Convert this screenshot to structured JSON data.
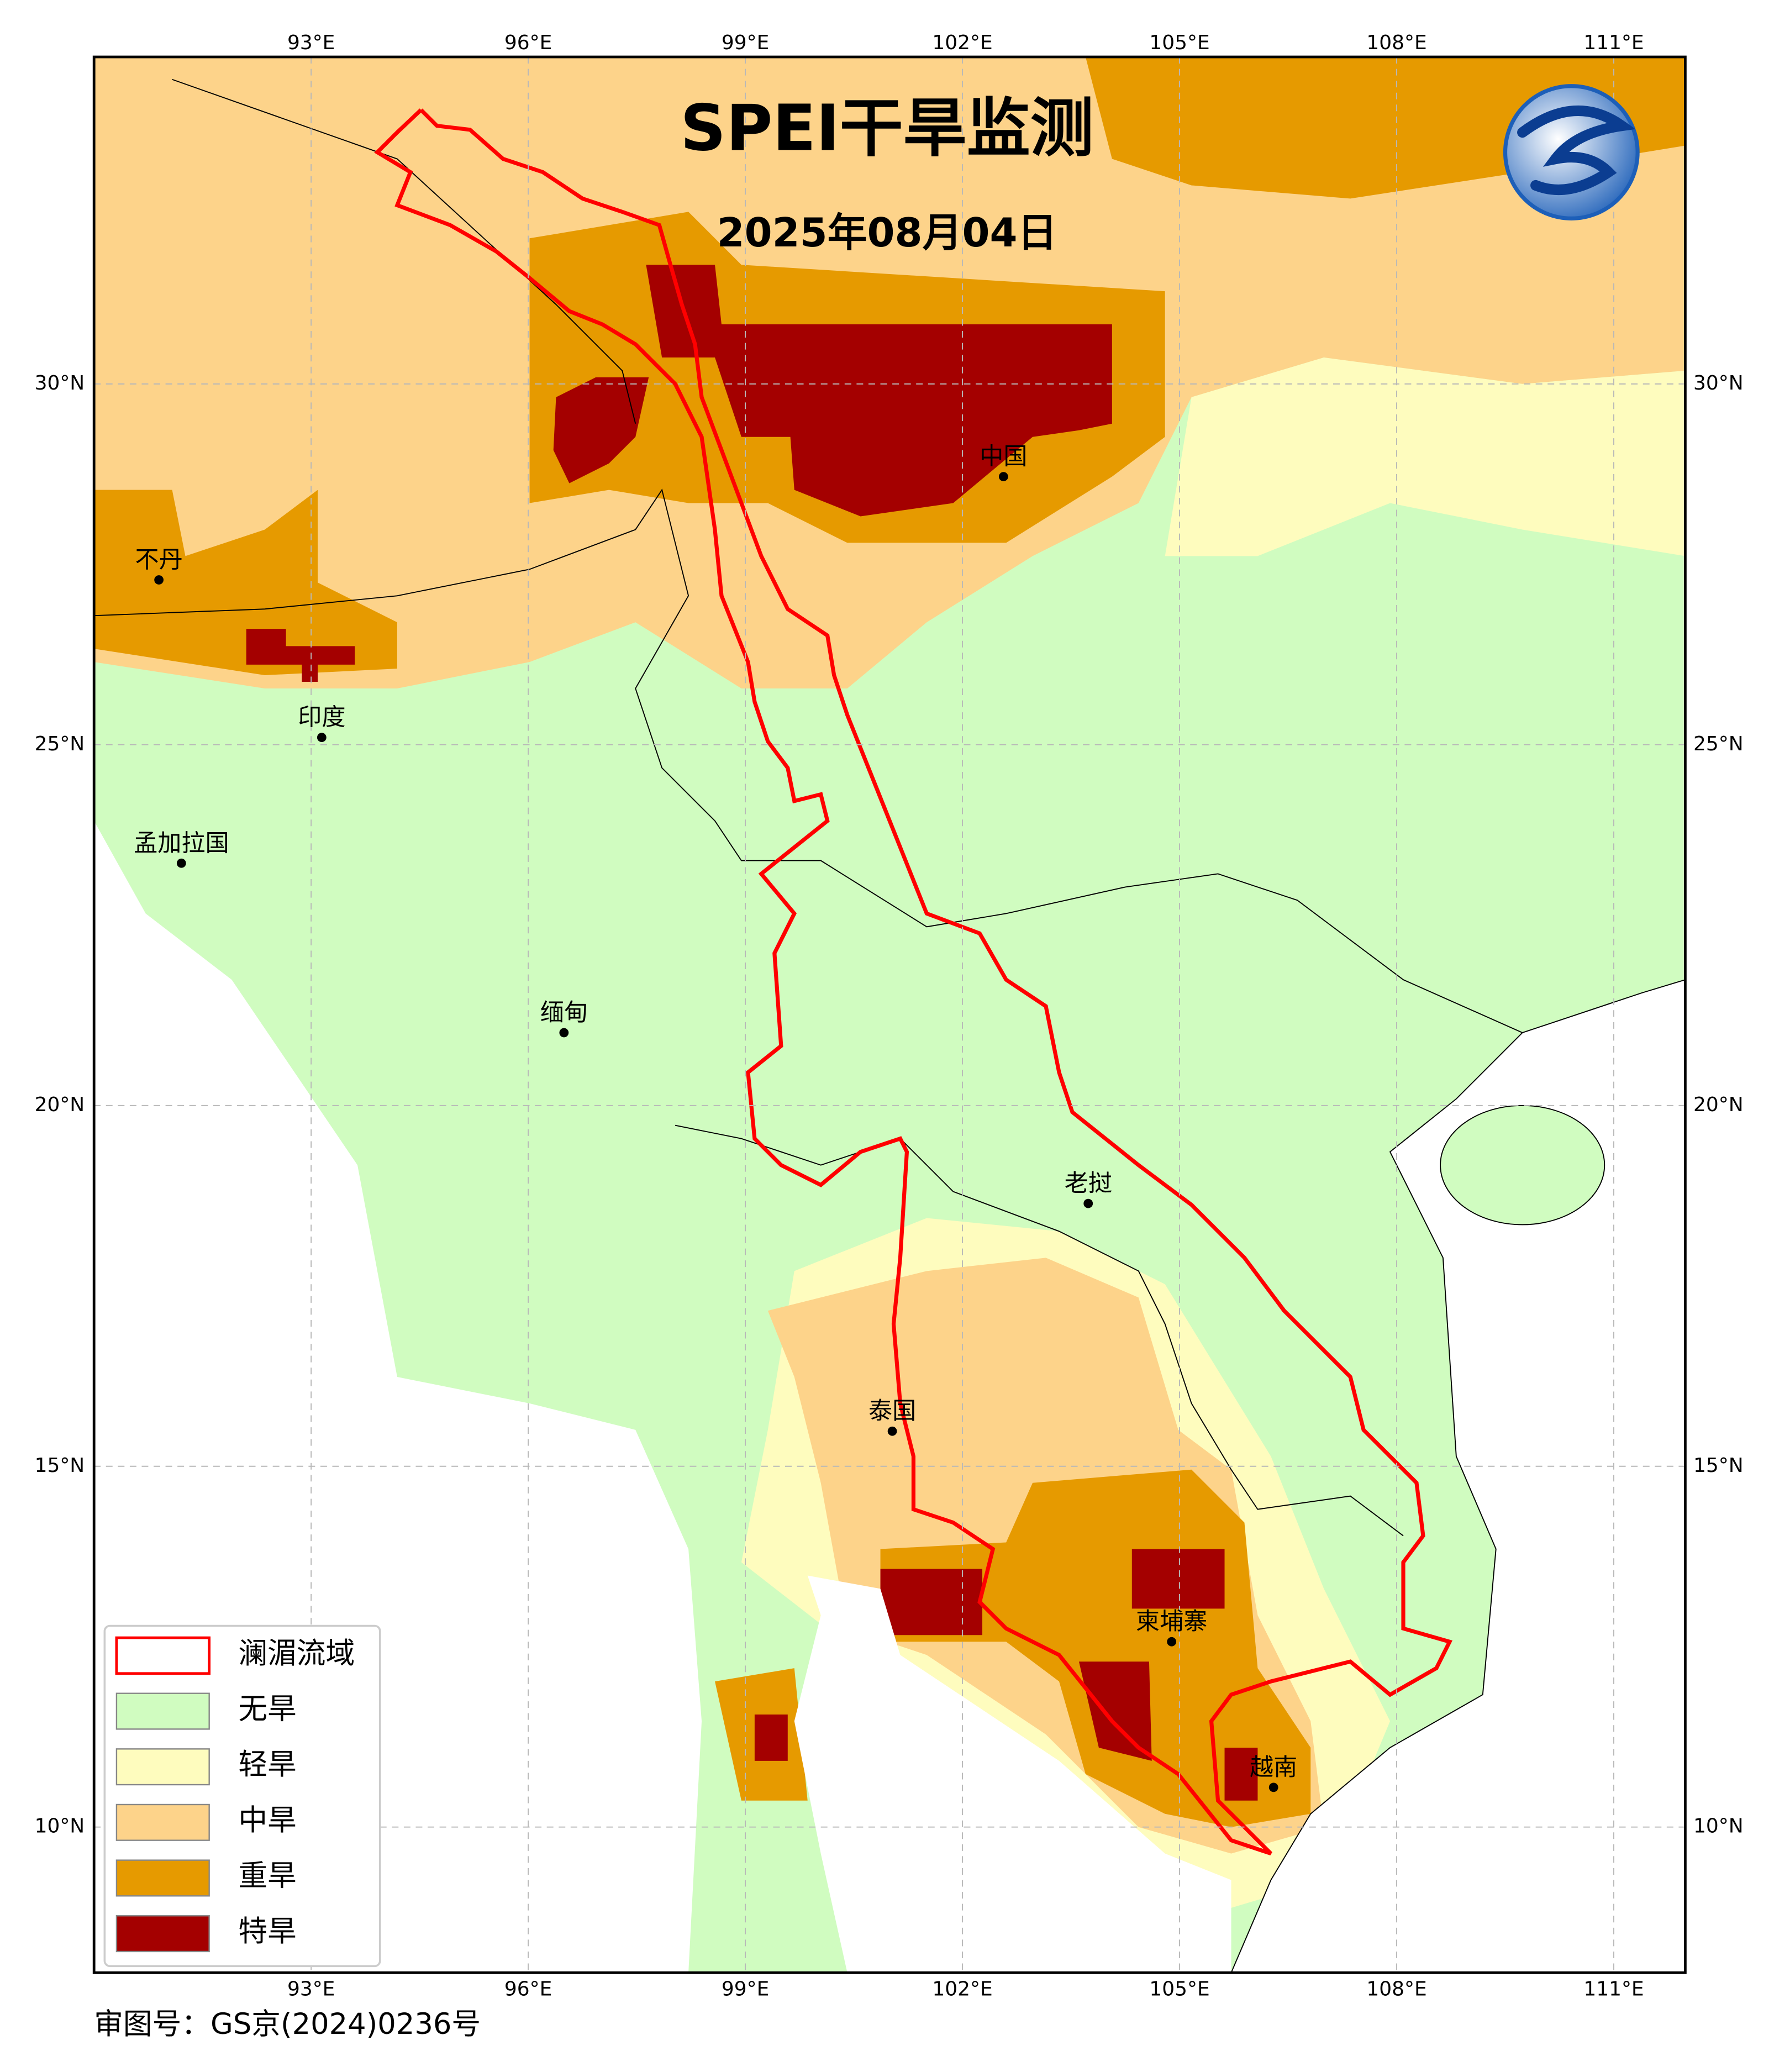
{
  "header": {
    "title": "SPEI干旱监测",
    "date": "2025年08月04日"
  },
  "axes": {
    "longitude": [
      "93°E",
      "96°E",
      "99°E",
      "102°E",
      "105°E",
      "108°E",
      "111°E"
    ],
    "latitude": [
      "30°N",
      "25°N",
      "20°N",
      "15°N",
      "10°N"
    ]
  },
  "places": [
    "中国",
    "不丹",
    "印度",
    "孟加拉国",
    "缅甸",
    "老挝",
    "泰国",
    "柬埔寨",
    "越南"
  ],
  "legend": [
    {
      "label": "澜湄流域",
      "color": "#ff0000"
    },
    {
      "label": "无旱",
      "color": "#d0fcc0"
    },
    {
      "label": "轻旱",
      "color": "#fefcbe"
    },
    {
      "label": "中旱",
      "color": "#fdd38a"
    },
    {
      "label": "重旱",
      "color": "#e69a00"
    },
    {
      "label": "特旱",
      "color": "#a40000"
    }
  ],
  "footer": "审图号：GS京(2024)0236号"
}
